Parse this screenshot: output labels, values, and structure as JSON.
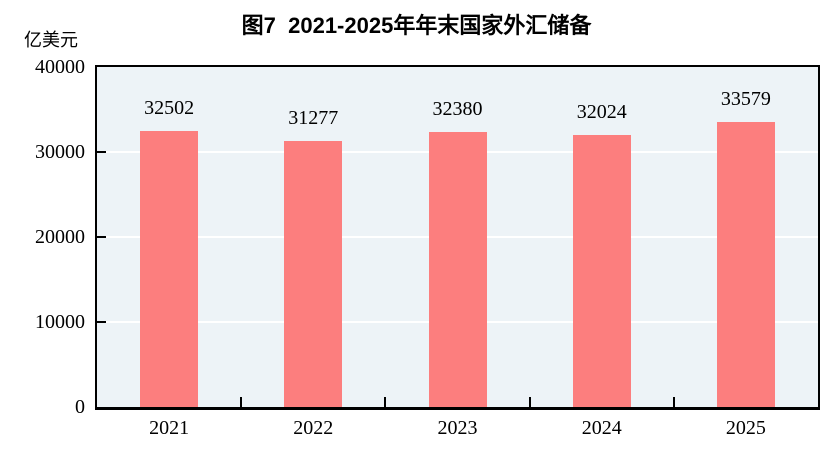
{
  "figure": {
    "title": "图7  2021-2025年年末国家外汇储备",
    "unit_label": "亿美元"
  },
  "chart_data": {
    "type": "bar",
    "title": "图7  2021-2025年年末国家外汇储备",
    "categories": [
      "2021",
      "2022",
      "2023",
      "2024",
      "2025"
    ],
    "values": [
      32502,
      31277,
      32380,
      32024,
      33579
    ],
    "data_labels": [
      "32502",
      "31277",
      "32380",
      "32024",
      "33579"
    ],
    "xlabel": "",
    "ylabel": "亿美元",
    "ylim": [
      0,
      40000
    ],
    "yticks": [
      0,
      10000,
      20000,
      30000,
      40000
    ],
    "ytick_labels": [
      "0",
      "10000",
      "20000",
      "30000",
      "40000"
    ],
    "grid": "horizontal",
    "legend": "none",
    "colors": {
      "bar_fill": "#FC7E7E",
      "plot_background": "#EDF3F7",
      "gridline": "#FFFFFF",
      "axis_border": "#000000",
      "text": "#000000",
      "page_background": "#FFFFFF"
    }
  }
}
